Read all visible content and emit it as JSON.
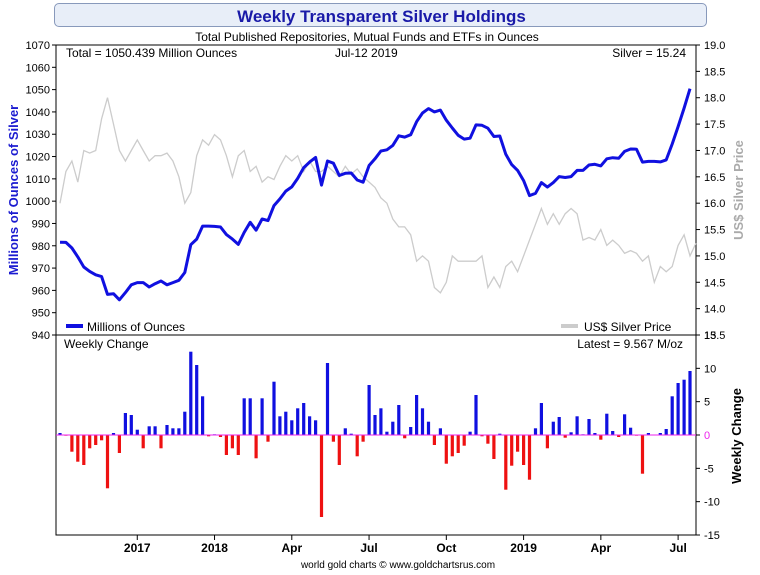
{
  "title": "Weekly Transparent Silver Holdings",
  "subtitle": "Total Published Repositories, Mutual Funds and ETFs in Ounces",
  "total_label": "Total = 1050.439 Million Ounces",
  "date_label": "Jul-12  2019",
  "silver_label": "Silver = 15.24",
  "latest_label": "Latest = 9.567 M/oz",
  "weekly_panel_label": "Weekly Change",
  "footer": "world gold charts © www.goldchartsrus.com",
  "colors": {
    "holdings": "#1010e0",
    "price": "#cccccc",
    "positive": "#1010e0",
    "negative": "#ee1111",
    "zero_line": "#ee22ee",
    "title": "#1a1aa8"
  },
  "chart_data": [
    {
      "type": "line",
      "ylabel": "Millions of Ounces of Silver",
      "y2label": "US$ Silver Price",
      "ylim": [
        940,
        1070
      ],
      "y2lim": [
        13.5,
        19.0
      ],
      "yticks": [
        940,
        950,
        960,
        970,
        980,
        990,
        1000,
        1010,
        1020,
        1030,
        1040,
        1050,
        1060,
        1070
      ],
      "y2ticks": [
        "13.5",
        "14.0",
        "14.5",
        "15.0",
        "15.5",
        "16.0",
        "16.5",
        "17.0",
        "17.5",
        "18.0",
        "18.5",
        "19.0"
      ],
      "xticks": [
        "2017",
        "2018",
        "Apr",
        "Jul",
        "Oct",
        "2019",
        "Apr",
        "Jul"
      ],
      "grid": false,
      "legend": "bottom",
      "series": [
        {
          "name": "Millions of Ounces",
          "axis": "left",
          "values": [
            981.6,
            981.5,
            979,
            975,
            970.5,
            968.5,
            967,
            966.2,
            958.2,
            958.5,
            955.8,
            959,
            962.5,
            963.5,
            963.5,
            961.5,
            963,
            964.2,
            962.5,
            963.5,
            964.5,
            968,
            980.5,
            983,
            988.8,
            988.8,
            988.7,
            988.4,
            985,
            983,
            980.6,
            986,
            990.5,
            987,
            992,
            991.3,
            998,
            1001,
            1004.5,
            1006.4,
            1010.2,
            1015,
            1017.5,
            1019.6,
            1007.2,
            1018,
            1017,
            1011.5,
            1012.5,
            1012.6,
            1009.5,
            1008.5,
            1016,
            1019,
            1022.5,
            1023,
            1025,
            1029.3,
            1028.7,
            1029.8,
            1035.6,
            1039.5,
            1041.5,
            1040,
            1040.8,
            1036.3,
            1032.8,
            1029.5,
            1027.8,
            1028.2,
            1034.2,
            1034,
            1032.7,
            1029,
            1029.2,
            1021,
            1016.4,
            1013.8,
            1009.2,
            1002.5,
            1003.5,
            1008.3,
            1006.3,
            1008.3,
            1011,
            1010.6,
            1011,
            1013.8,
            1013.8,
            1016.2,
            1016.5,
            1015.8,
            1019,
            1019.5,
            1019.2,
            1022.3,
            1023.4,
            1023.3,
            1017.5,
            1017.8,
            1017.8,
            1017.6,
            1018.5,
            1025.6,
            1033.4,
            1041.7,
            1050.4
          ]
        },
        {
          "name": "US$ Silver Price",
          "axis": "right",
          "values": [
            16.0,
            16.6,
            16.8,
            16.4,
            17.0,
            16.95,
            17.0,
            17.6,
            18.0,
            17.5,
            17.0,
            16.8,
            17.0,
            17.2,
            17.0,
            16.8,
            16.9,
            16.9,
            16.95,
            16.8,
            16.5,
            16.0,
            16.2,
            16.9,
            17.2,
            17.1,
            17.3,
            17.2,
            16.9,
            16.5,
            16.9,
            17.0,
            16.6,
            16.7,
            16.4,
            16.5,
            16.45,
            16.7,
            16.9,
            16.8,
            16.9,
            16.6,
            16.8,
            16.6,
            16.6,
            16.7,
            16.6,
            16.5,
            16.7,
            16.55,
            16.65,
            16.5,
            16.4,
            16.3,
            16.1,
            16.0,
            15.7,
            15.55,
            15.55,
            15.4,
            14.9,
            15.0,
            14.9,
            14.4,
            14.3,
            14.5,
            15.0,
            14.9,
            14.9,
            14.9,
            14.9,
            15.0,
            14.4,
            14.6,
            14.4,
            14.8,
            14.9,
            14.7,
            15.0,
            15.3,
            15.6,
            15.9,
            15.6,
            15.8,
            15.6,
            15.8,
            15.9,
            15.8,
            15.3,
            15.35,
            15.3,
            15.5,
            15.2,
            15.3,
            15.2,
            15.05,
            15.1,
            15.05,
            14.9,
            15.0,
            14.5,
            14.8,
            14.7,
            14.8,
            15.2,
            15.4,
            15.0,
            15.24
          ]
        }
      ]
    },
    {
      "type": "bar",
      "ylabel": "Weekly Change",
      "ylim": [
        -15,
        15
      ],
      "yticks": [
        -15,
        -10,
        -5,
        0,
        5,
        10,
        15
      ],
      "xticks": [
        "2017",
        "2018",
        "Apr",
        "Jul",
        "Oct",
        "2019",
        "Apr",
        "Jul"
      ],
      "values": [
        0.3,
        -0.1,
        -2.5,
        -4.0,
        -4.5,
        -2.0,
        -1.5,
        -0.8,
        -8.0,
        0.3,
        -2.7,
        3.3,
        3.0,
        0.8,
        -2.0,
        1.3,
        1.3,
        -2.0,
        1.5,
        1.0,
        1.0,
        3.5,
        12.5,
        10.5,
        5.8,
        -0.2,
        0.1,
        -0.3,
        -3.0,
        -2.0,
        -3.0,
        5.5,
        5.5,
        -3.5,
        5.5,
        -1.0,
        8.0,
        2.8,
        3.5,
        2.2,
        4.0,
        4.8,
        2.8,
        2.2,
        -12.3,
        10.8,
        -1.0,
        -4.5,
        1.0,
        0.2,
        -3.2,
        -1.0,
        7.5,
        3.0,
        4.0,
        0.5,
        2.0,
        4.5,
        -0.5,
        1.2,
        6.0,
        4.0,
        2.0,
        -1.5,
        1.0,
        -4.3,
        -3.2,
        -2.7,
        -1.6,
        0.5,
        6.0,
        -0.2,
        -1.3,
        -3.6,
        0.2,
        -8.2,
        -4.6,
        -2.5,
        -4.5,
        -6.7,
        1.0,
        4.8,
        -2.0,
        2.0,
        2.7,
        -0.4,
        0.4,
        2.8,
        0.1,
        2.4,
        0.3,
        -0.7,
        3.2,
        0.6,
        -0.3,
        3.1,
        1.1,
        -0.1,
        -5.8,
        0.3,
        0.0,
        0.3,
        0.9,
        5.8,
        7.8,
        8.3,
        9.6
      ]
    }
  ]
}
